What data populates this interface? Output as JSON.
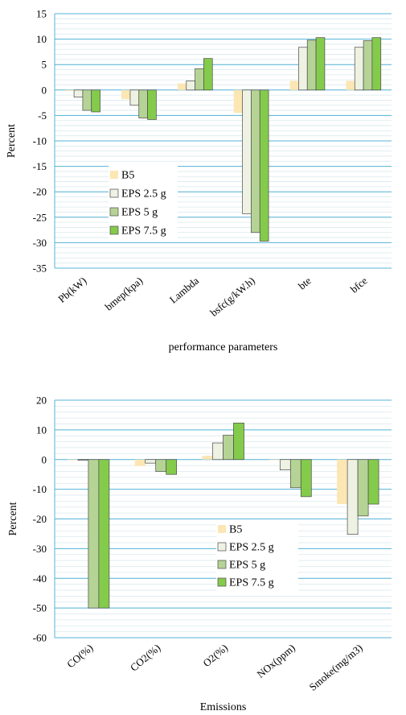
{
  "colors": [
    "#fbe6b4",
    "#eef2e2",
    "#b6d396",
    "#84cb4c"
  ],
  "chart_data": [
    {
      "type": "bar",
      "title": "",
      "xlabel": "performance parameters",
      "ylabel": "Percent",
      "ylim": [
        -35,
        15
      ],
      "ytick_step": 5,
      "grid": true,
      "legend_position": "lower-left",
      "categories": [
        "Pb(kW)",
        "bmep(kpa)",
        "Lambda",
        "bsfc(g/kW.h)",
        "bte",
        "bfce"
      ],
      "series": [
        {
          "name": "B5",
          "values": [
            -0.2,
            -1.8,
            1.3,
            -4.5,
            1.8,
            1.8
          ]
        },
        {
          "name": "EPS 2.5 g",
          "values": [
            -1.4,
            -3.0,
            1.8,
            -24.3,
            8.4,
            8.4
          ]
        },
        {
          "name": "EPS 5 g",
          "values": [
            -4.0,
            -5.5,
            4.2,
            -28.0,
            9.8,
            9.7
          ]
        },
        {
          "name": "EPS 7.5 g",
          "values": [
            -4.3,
            -5.8,
            6.2,
            -29.7,
            10.3,
            10.3
          ]
        }
      ]
    },
    {
      "type": "bar",
      "title": "",
      "xlabel": "Emissions",
      "ylabel": "Percent",
      "ylim": [
        -60,
        20
      ],
      "ytick_step": 10,
      "grid": true,
      "legend_position": "center",
      "categories": [
        "CO(%)",
        "CO2(%)",
        "O2(%)",
        "NOx(ppm)",
        "Smoke(mg/m3)"
      ],
      "series": [
        {
          "name": "B5",
          "values": [
            -0.2,
            -2.2,
            1.3,
            -0.2,
            -15.0
          ]
        },
        {
          "name": "EPS 2.5 g",
          "values": [
            -0.2,
            -1.2,
            5.6,
            -3.5,
            -25.2
          ]
        },
        {
          "name": "EPS 5 g",
          "values": [
            -50.0,
            -4.0,
            8.2,
            -9.5,
            -19.0
          ]
        },
        {
          "name": "EPS 7.5 g",
          "values": [
            -50.0,
            -5.0,
            12.3,
            -12.5,
            -15.0
          ]
        }
      ]
    }
  ]
}
